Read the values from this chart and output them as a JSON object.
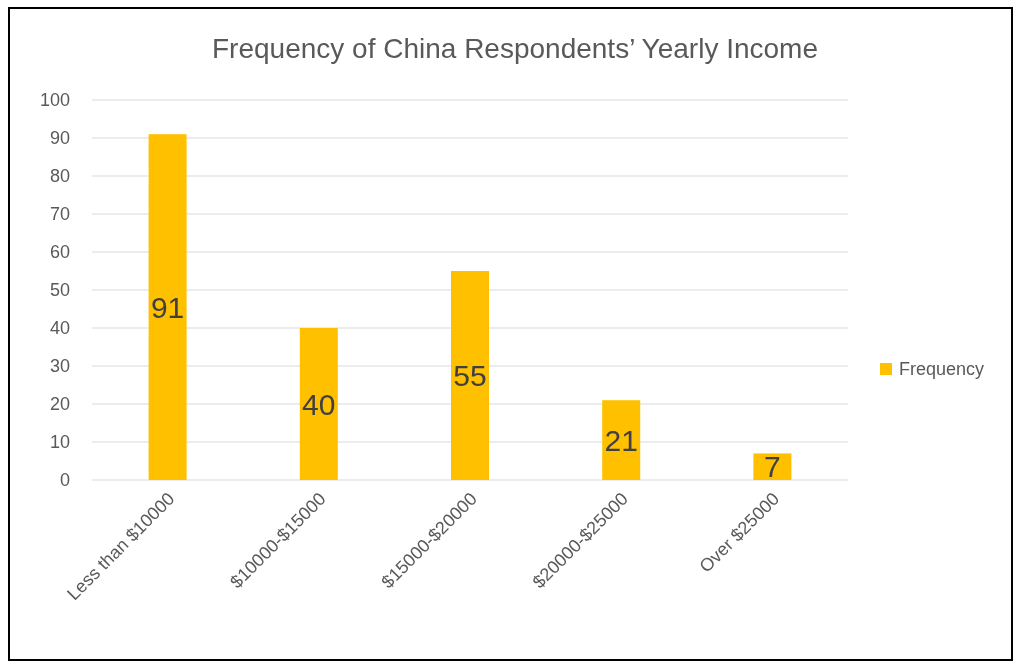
{
  "chart_data": {
    "type": "bar",
    "title": "Frequency of China Respondents’ Yearly Income",
    "categories": [
      "Less than $10000",
      "$10000-$15000",
      "$15000-$20000",
      "$20000-$25000",
      "Over $25000"
    ],
    "series": [
      {
        "name": "Frequency",
        "color": "#ffc000",
        "values": [
          91,
          40,
          55,
          21,
          7
        ]
      }
    ],
    "ylim": [
      0,
      100
    ],
    "yticks": [
      0,
      10,
      20,
      30,
      40,
      50,
      60,
      70,
      80,
      90,
      100
    ],
    "grid": "y",
    "legend": "right",
    "data_labels": true
  }
}
